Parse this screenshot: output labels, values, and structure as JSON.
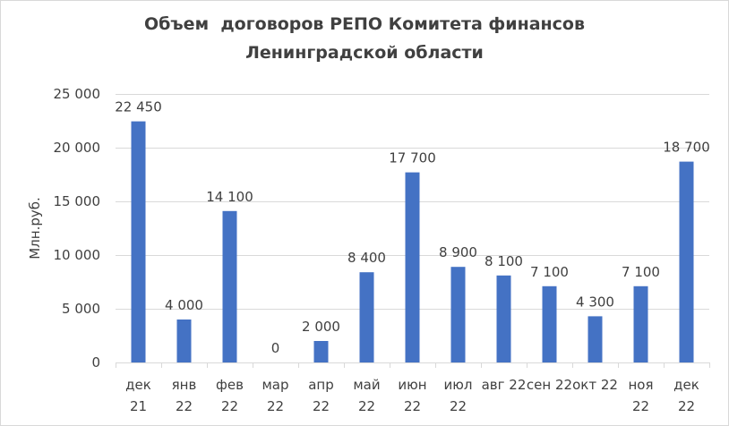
{
  "chart_data": {
    "type": "bar",
    "title_lines": [
      "Объем  договоров РЕПО Комитета финансов",
      "Ленинградской области"
    ],
    "ylabel": "Млн.руб.",
    "xlabel": "",
    "ylim": [
      0,
      25000
    ],
    "y_ticks": [
      0,
      5000,
      10000,
      15000,
      20000,
      25000
    ],
    "y_tick_labels": [
      "0",
      "5 000",
      "10 000",
      "15 000",
      "20 000",
      "25 000"
    ],
    "grid": true,
    "legend": "none",
    "bar_color": "#4472c4",
    "categories": [
      [
        "дек",
        "21"
      ],
      [
        "янв",
        "22"
      ],
      [
        "фев",
        "22"
      ],
      [
        "мар",
        "22"
      ],
      [
        "апр",
        "22"
      ],
      [
        "май",
        "22"
      ],
      [
        "июн",
        "22"
      ],
      [
        "июл",
        "22"
      ],
      [
        "авг 22"
      ],
      [
        "сен 22"
      ],
      [
        "окт 22"
      ],
      [
        "ноя",
        "22"
      ],
      [
        "дек",
        "22"
      ]
    ],
    "values": [
      22450,
      4000,
      14100,
      0,
      2000,
      8400,
      17700,
      8900,
      8100,
      7100,
      4300,
      7100,
      18700
    ],
    "data_labels": [
      "22 450",
      "4 000",
      "14 100",
      "0",
      "2 000",
      "8 400",
      "17 700",
      "8 900",
      "8 100",
      "7 100",
      "4 300",
      "7 100",
      "18 700"
    ]
  }
}
